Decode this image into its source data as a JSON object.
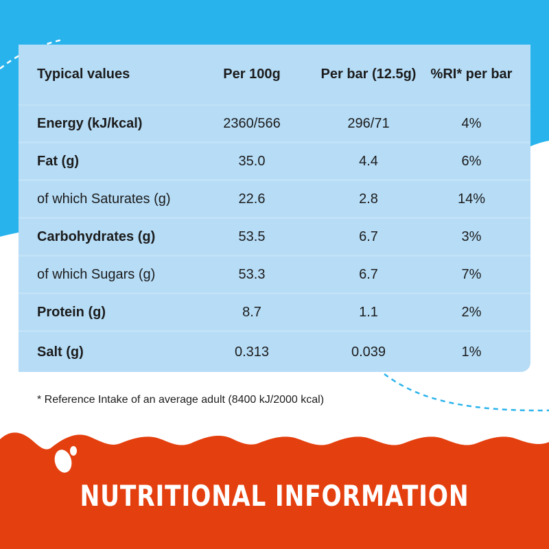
{
  "colors": {
    "sky_blue": "#29b3ec",
    "table_blue": "#b6dcf6",
    "row_divider": "#e6f3fc",
    "banner_orange": "#e4400f",
    "milk_white": "#ffffff"
  },
  "table": {
    "headers": [
      "Typical values",
      "Per 100g",
      "Per bar (12.5g)",
      "%RI* per bar"
    ],
    "rows": [
      {
        "label": "Energy (kJ/kcal)",
        "per100": "2360/566",
        "perbar": "296/71",
        "ri": "4%",
        "bold": true
      },
      {
        "label": "Fat (g)",
        "per100": "35.0",
        "perbar": "4.4",
        "ri": "6%",
        "bold": true
      },
      {
        "label": "of which Saturates (g)",
        "per100": "22.6",
        "perbar": "2.8",
        "ri": "14%",
        "bold": false
      },
      {
        "label": "Carbohydrates (g)",
        "per100": "53.5",
        "perbar": "6.7",
        "ri": "3%",
        "bold": true
      },
      {
        "label": "of which Sugars (g)",
        "per100": "53.3",
        "perbar": "6.7",
        "ri": "7%",
        "bold": false
      },
      {
        "label": "Protein (g)",
        "per100": "8.7",
        "perbar": "1.1",
        "ri": "2%",
        "bold": true
      },
      {
        "label": "Salt (g)",
        "per100": "0.313",
        "perbar": "0.039",
        "ri": "1%",
        "bold": true
      }
    ]
  },
  "footnote": "* Reference Intake of an average adult (8400 kJ/2000 kcal)",
  "banner": {
    "title": "NUTRITIONAL INFORMATION"
  }
}
